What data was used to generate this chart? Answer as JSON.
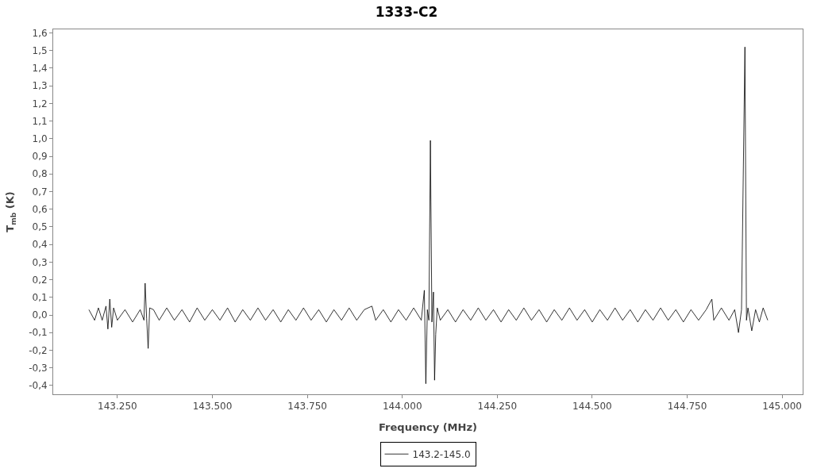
{
  "chart_data": {
    "type": "line",
    "title": "1333-C2",
    "xlabel": "Frequency (MHz)",
    "ylabel": "T$_{mb}$ (K)",
    "xlim": [
      143081,
      145054
    ],
    "xticks": [
      {
        "value": 143250,
        "label": "143.250"
      },
      {
        "value": 143500,
        "label": "143.500"
      },
      {
        "value": 143750,
        "label": "143.750"
      },
      {
        "value": 144000,
        "label": "144.000"
      },
      {
        "value": 144250,
        "label": "144.250"
      },
      {
        "value": 144500,
        "label": "144.500"
      },
      {
        "value": 144750,
        "label": "144.750"
      },
      {
        "value": 145000,
        "label": "145.000"
      }
    ],
    "ylim": [
      -0.45,
      1.62
    ],
    "yticks": [
      {
        "value": -0.4,
        "label": "-0,4"
      },
      {
        "value": -0.3,
        "label": "-0,3"
      },
      {
        "value": -0.2,
        "label": "-0,2"
      },
      {
        "value": -0.1,
        "label": "-0,1"
      },
      {
        "value": 0.0,
        "label": "0,0"
      },
      {
        "value": 0.1,
        "label": "0,1"
      },
      {
        "value": 0.2,
        "label": "0,2"
      },
      {
        "value": 0.3,
        "label": "0,3"
      },
      {
        "value": 0.4,
        "label": "0,4"
      },
      {
        "value": 0.5,
        "label": "0,5"
      },
      {
        "value": 0.6,
        "label": "0,6"
      },
      {
        "value": 0.7,
        "label": "0,7"
      },
      {
        "value": 0.8,
        "label": "0,8"
      },
      {
        "value": 0.9,
        "label": "0,9"
      },
      {
        "value": 1.0,
        "label": "1,0"
      },
      {
        "value": 1.1,
        "label": "1,1"
      },
      {
        "value": 1.2,
        "label": "1,2"
      },
      {
        "value": 1.3,
        "label": "1,3"
      },
      {
        "value": 1.4,
        "label": "1,4"
      },
      {
        "value": 1.5,
        "label": "1,5"
      },
      {
        "value": 1.6,
        "label": "1,6"
      }
    ],
    "legend": "bottom",
    "series": [
      {
        "name": "143.2-145.0",
        "color": "#000000",
        "x": [
          143175,
          143190,
          143200,
          143210,
          143220,
          143225,
          143230,
          143235,
          143240,
          143250,
          143270,
          143290,
          143310,
          143320,
          143323,
          143327,
          143331,
          143335,
          143345,
          143360,
          143380,
          143400,
          143420,
          143440,
          143460,
          143480,
          143500,
          143520,
          143540,
          143560,
          143580,
          143600,
          143620,
          143640,
          143660,
          143680,
          143700,
          143720,
          143740,
          143760,
          143780,
          143800,
          143820,
          143840,
          143860,
          143880,
          143900,
          143920,
          143930,
          143950,
          143970,
          143990,
          144010,
          144030,
          144050,
          144058,
          144062,
          144066,
          144070,
          144074,
          144078,
          144082,
          144085,
          144088,
          144092,
          144100,
          144120,
          144140,
          144160,
          144180,
          144200,
          144220,
          144240,
          144260,
          144280,
          144300,
          144320,
          144340,
          144360,
          144380,
          144400,
          144420,
          144440,
          144460,
          144480,
          144500,
          144520,
          144540,
          144560,
          144580,
          144600,
          144620,
          144640,
          144660,
          144680,
          144700,
          144720,
          144740,
          144760,
          144780,
          144800,
          144815,
          144820,
          144840,
          144860,
          144875,
          144885,
          144893,
          144902,
          144906,
          144910,
          144920,
          144930,
          144940,
          144950,
          144962
        ],
        "values": [
          0.03,
          -0.03,
          0.04,
          -0.03,
          0.05,
          -0.08,
          0.09,
          -0.07,
          0.04,
          -0.03,
          0.03,
          -0.04,
          0.03,
          -0.03,
          0.18,
          -0.02,
          -0.19,
          0.04,
          0.03,
          -0.03,
          0.04,
          -0.03,
          0.03,
          -0.04,
          0.04,
          -0.03,
          0.03,
          -0.03,
          0.04,
          -0.04,
          0.03,
          -0.03,
          0.04,
          -0.03,
          0.03,
          -0.04,
          0.03,
          -0.03,
          0.04,
          -0.03,
          0.03,
          -0.04,
          0.03,
          -0.03,
          0.04,
          -0.03,
          0.03,
          0.05,
          -0.03,
          0.03,
          -0.04,
          0.03,
          -0.03,
          0.04,
          -0.03,
          0.14,
          -0.39,
          0.03,
          -0.03,
          0.99,
          -0.04,
          0.13,
          -0.37,
          -0.11,
          0.04,
          -0.03,
          0.03,
          -0.04,
          0.03,
          -0.03,
          0.04,
          -0.03,
          0.03,
          -0.04,
          0.03,
          -0.03,
          0.04,
          -0.03,
          0.03,
          -0.04,
          0.03,
          -0.03,
          0.04,
          -0.03,
          0.03,
          -0.04,
          0.03,
          -0.03,
          0.04,
          -0.03,
          0.03,
          -0.04,
          0.03,
          -0.03,
          0.04,
          -0.03,
          0.03,
          -0.04,
          0.03,
          -0.03,
          0.03,
          0.09,
          -0.03,
          0.04,
          -0.03,
          0.03,
          -0.1,
          0.03,
          1.52,
          -0.03,
          0.04,
          -0.09,
          0.03,
          -0.04,
          0.04,
          -0.03
        ]
      }
    ]
  }
}
